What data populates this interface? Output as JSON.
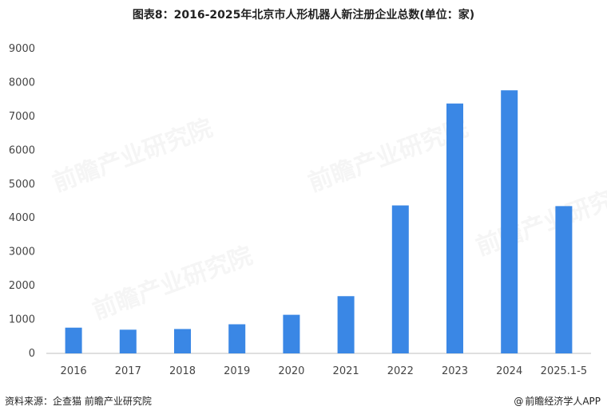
{
  "chart_data": {
    "type": "bar",
    "title": "图表8：2016-2025年北京市人形机器人新注册企业总数(单位：家)",
    "categories": [
      "2016",
      "2017",
      "2018",
      "2019",
      "2020",
      "2021",
      "2022",
      "2023",
      "2024",
      "2025.1-5"
    ],
    "values": [
      760,
      700,
      720,
      860,
      1140,
      1690,
      4370,
      7380,
      7770,
      4350
    ],
    "ylim": [
      0,
      9000
    ],
    "yticks": [
      0,
      1000,
      2000,
      3000,
      4000,
      5000,
      6000,
      7000,
      8000,
      9000
    ],
    "grid": false,
    "bar_color": "#3a87e5"
  },
  "footer": {
    "source": "资料来源：企查猫 前瞻产业研究院",
    "brand_mark": "@",
    "brand": "前瞻经济学人APP"
  },
  "watermark": "前瞻产业研究院"
}
